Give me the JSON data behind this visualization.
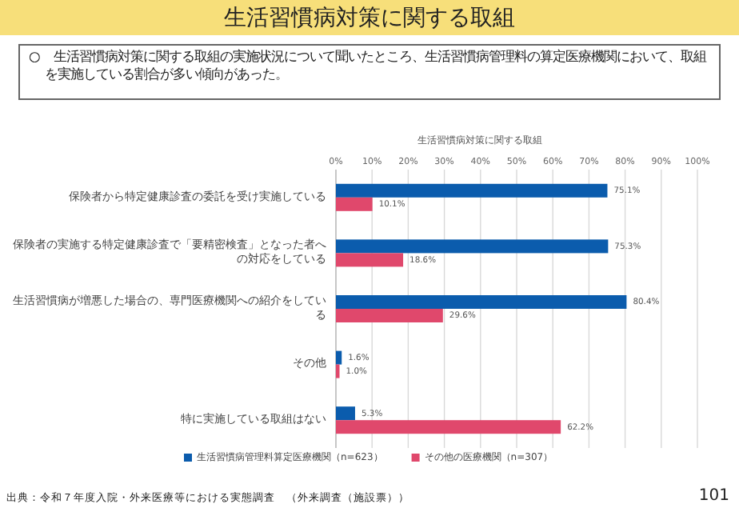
{
  "chart_data": {
    "type": "bar",
    "orientation": "horizontal",
    "title": "生活習慣病対策に関する取組",
    "annotations": [
      "○　生活習慣病対策に関する取組の実施状況について聞いたところ、生活習慣病管理料の算定医療機関において、取組を実施している割合が多い傾向があった。",
      "生活習慣病対策に関する取組",
      "出典：令和７年度入院・外来医療等における実態調査　（外来調査（施設票））",
      "101"
    ],
    "categories": [
      "保険者から特定健康診査の委託を受け実施している",
      "保険者の実施する特定健康診査で「要精密検査」となった者への対応をしている",
      "生活習慣病が増悪した場合の、専門医療機関への紹介をしている",
      "その他",
      "特に実施している取組はない"
    ],
    "series": [
      {
        "name": "生活習慣病管理料算定医療機関（n=623）",
        "color": "#0b5cad",
        "values": [
          75.1,
          75.3,
          80.4,
          1.6,
          5.3
        ],
        "value_labels": [
          "75.1%",
          "75.3%",
          "80.4%",
          "1.6%",
          "5.3%"
        ]
      },
      {
        "name": "その他の医療機関（n=307）",
        "color": "#e0486c",
        "values": [
          10.1,
          18.6,
          29.6,
          1.0,
          62.2
        ],
        "value_labels": [
          "10.1%",
          "18.6%",
          "29.6%",
          "1.0%",
          "62.2%"
        ]
      }
    ],
    "xlim": [
      0,
      100
    ],
    "xticks": [
      {
        "value": 0,
        "label": "0%"
      },
      {
        "value": 10,
        "label": "10%"
      },
      {
        "value": 20,
        "label": "20%"
      },
      {
        "value": 30,
        "label": "30%"
      },
      {
        "value": 40,
        "label": "40%"
      },
      {
        "value": 50,
        "label": "50%"
      },
      {
        "value": 60,
        "label": "60%"
      },
      {
        "value": 70,
        "label": "70%"
      },
      {
        "value": 80,
        "label": "80%"
      },
      {
        "value": 90,
        "label": "90%"
      },
      {
        "value": 100,
        "label": "100%"
      }
    ],
    "grid": "x",
    "legend": "bottom"
  }
}
